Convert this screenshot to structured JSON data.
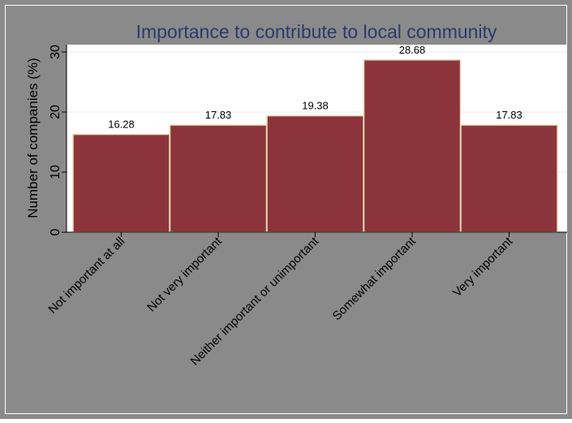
{
  "chart_data": {
    "type": "bar",
    "title": "Importance to contribute to local community",
    "ylabel": "Number of companies (%)",
    "xlabel": "",
    "categories": [
      "Not important at all",
      "Not very important",
      "Neither important or unimportant",
      "Somewhat important",
      "Very important"
    ],
    "values": [
      16.28,
      17.83,
      19.38,
      28.68,
      17.83
    ],
    "value_labels": [
      "16.28",
      "17.83",
      "19.38",
      "28.68",
      "17.83"
    ],
    "ylim": [
      0,
      30
    ],
    "yticks": [
      0,
      10,
      20,
      30
    ],
    "ytick_labels": [
      "0",
      "10",
      "20",
      "30"
    ],
    "grid": true,
    "legend": "none",
    "colors": {
      "outer_background": "#8a8a8a",
      "plot_background": "#ffffff",
      "bar_fill": "#8c343c",
      "bar_edge": "#e8dcb0",
      "title": "#2b3a6e",
      "grid": "#e6ebf0",
      "text": "#000000"
    }
  }
}
